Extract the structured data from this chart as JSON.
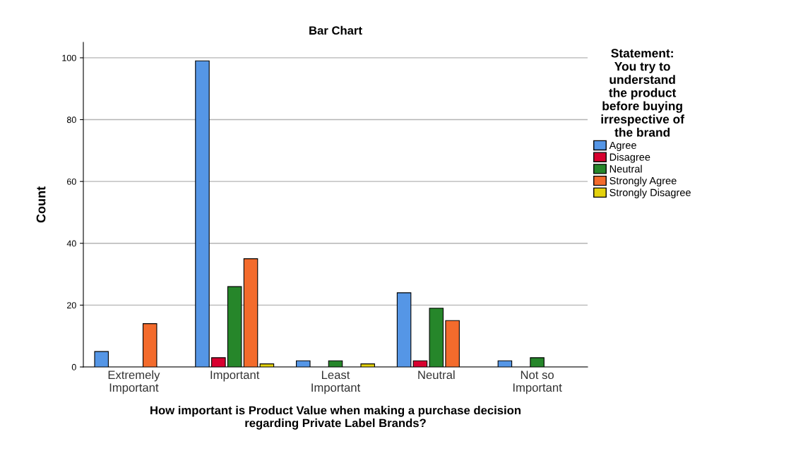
{
  "chart_data": {
    "type": "bar",
    "title": "Bar Chart",
    "xlabel": "How important is Product Value when making a purchase decision\nregarding Private Label Brands?",
    "ylabel": "Count",
    "legend_title": "Statement:\nYou try to\nunderstand\nthe product\nbefore buying\nirrespective of\nthe brand",
    "categories": [
      "Extremely\nImportant",
      "Important",
      "Least\nImportant",
      "Neutral",
      "Not so\nImportant"
    ],
    "series": [
      {
        "name": "Agree",
        "color": "#5596e6",
        "values": [
          5,
          99,
          2,
          24,
          2
        ]
      },
      {
        "name": "Disagree",
        "color": "#d8002f",
        "values": [
          null,
          3,
          null,
          2,
          null
        ]
      },
      {
        "name": "Neutral",
        "color": "#26862a",
        "values": [
          null,
          26,
          2,
          19,
          3
        ]
      },
      {
        "name": "Strongly Agree",
        "color": "#f36b2c",
        "values": [
          14,
          35,
          null,
          15,
          null
        ]
      },
      {
        "name": "Strongly Disagree",
        "color": "#e4d20e",
        "values": [
          null,
          1,
          1,
          null,
          null
        ]
      }
    ],
    "ylim": [
      0,
      105
    ],
    "yticks": [
      0,
      20,
      40,
      60,
      80,
      100
    ],
    "grid": "y",
    "legend": "right"
  }
}
